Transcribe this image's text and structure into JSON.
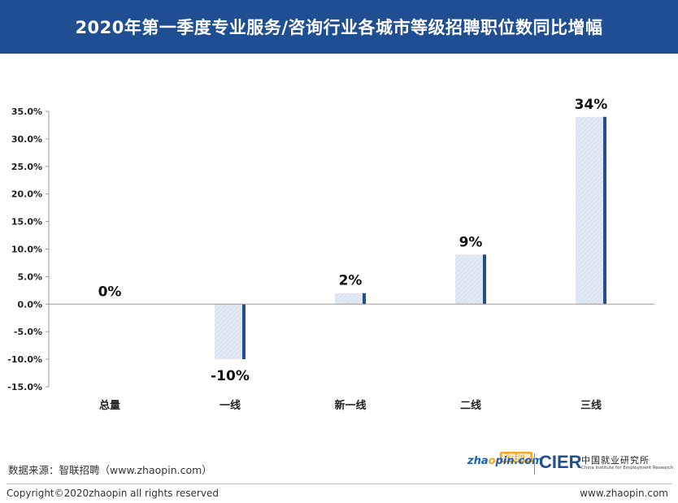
{
  "header": {
    "title": "2020年第一季度专业服务/咨询行业各城市等级招聘职位数同比增幅"
  },
  "chart_data": {
    "type": "bar",
    "title": "2020年第一季度专业服务/咨询行业各城市等级招聘职位数同比增幅",
    "categories": [
      "总量",
      "一线",
      "新一线",
      "二线",
      "三线"
    ],
    "values": [
      0,
      -10,
      2,
      9,
      34
    ],
    "data_labels": [
      "0%",
      "-10%",
      "2%",
      "9%",
      "34%"
    ],
    "ylim": [
      -15,
      35
    ],
    "yticks": [
      35,
      30,
      25,
      20,
      15,
      10,
      5,
      0,
      -5,
      -10,
      -15
    ],
    "ytick_labels": [
      "35.0%",
      "30.0%",
      "25.0%",
      "20.0%",
      "15.0%",
      "10.0%",
      "5.0%",
      "0.0%",
      "-5.0%",
      "-10.0%",
      "-15.0%"
    ],
    "xlabel": "",
    "ylabel": "",
    "grid": false,
    "colors": {
      "bar_fill": "#dfe6f2",
      "bar_edge": "#1f4e93",
      "axis": "#999999"
    }
  },
  "footer": {
    "source": "数据来源：智联招聘（www.zhaopin.com）",
    "copyright": "Copyright©2020zhaopin all rights reserved",
    "website": "www.zhaopin.com",
    "logo_zhaopin_badge": "智联招聘",
    "logo_cier": "CIER",
    "logo_cier_cn": "中国就业研究所",
    "logo_cier_en": "China Institute for Employment Research"
  },
  "colors": {
    "header_bg": "#1f4e93",
    "header_text": "#ffffff"
  }
}
